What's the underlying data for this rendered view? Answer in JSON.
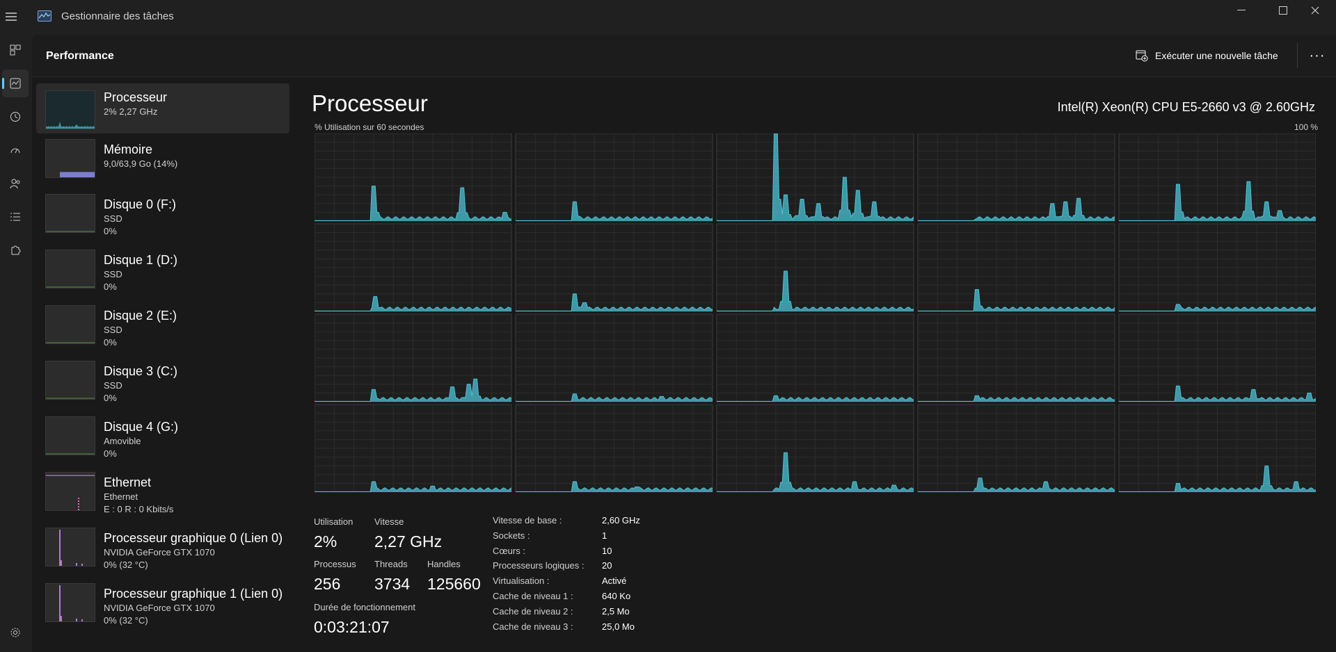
{
  "window": {
    "title": "Gestionnaire des tâches"
  },
  "header": {
    "title": "Performance",
    "run_task_label": "Exécuter une nouvelle tâche",
    "more_label": "···"
  },
  "nav": {
    "items": [
      "processes",
      "performance",
      "app-history",
      "startup",
      "users",
      "details",
      "services"
    ],
    "active": "performance",
    "settings": "settings"
  },
  "devices": [
    {
      "name": "Processeur",
      "line1": "2%  2,27 GHz",
      "line2": "",
      "kind": "cpu",
      "graph_color": "#4cc2d6"
    },
    {
      "name": "Mémoire",
      "line1": "9,0/63,9 Go (14%)",
      "line2": "",
      "kind": "mem",
      "graph_color": "#8c8cf0",
      "level": 0.14
    },
    {
      "name": "Disque 0 (F:)",
      "line1": "SSD",
      "line2": "0%",
      "kind": "disk",
      "graph_color": "#7fce5c"
    },
    {
      "name": "Disque 1 (D:)",
      "line1": "SSD",
      "line2": "0%",
      "kind": "disk",
      "graph_color": "#7fce5c"
    },
    {
      "name": "Disque 2 (E:)",
      "line1": "SSD",
      "line2": "0%",
      "kind": "disk",
      "graph_color": "#7fce5c"
    },
    {
      "name": "Disque 3 (C:)",
      "line1": "SSD",
      "line2": "0%",
      "kind": "disk",
      "graph_color": "#7fce5c"
    },
    {
      "name": "Disque 4 (G:)",
      "line1": "Amovible",
      "line2": "0%",
      "kind": "disk",
      "graph_color": "#7fce5c"
    },
    {
      "name": "Ethernet",
      "line1": "Ethernet",
      "line2": "E : 0 R : 0 Kbits/s",
      "kind": "net",
      "graph_color": "#d670b8"
    },
    {
      "name": "Processeur graphique 0 (Lien 0)",
      "line1": "NVIDIA GeForce GTX 1070",
      "line2": "0%  (32 °C)",
      "kind": "gpu",
      "graph_color": "#b07ad6"
    },
    {
      "name": "Processeur graphique 1 (Lien 0)",
      "line1": "NVIDIA GeForce GTX 1070",
      "line2": "0%  (32 °C)",
      "kind": "gpu",
      "graph_color": "#b07ad6"
    }
  ],
  "cpu": {
    "title": "Processeur",
    "model": "Intel(R) Xeon(R) CPU E5-2660 v3 @ 2.60GHz",
    "axis_label": "% Utilisation sur 60 secondes",
    "axis_max": "100 %",
    "graph_color": "#4cc2d6",
    "stats": {
      "utilisation_label": "Utilisation",
      "utilisation": "2%",
      "vitesse_label": "Vitesse",
      "vitesse": "2,27 GHz",
      "processus_label": "Processus",
      "processus": "256",
      "threads_label": "Threads",
      "threads": "3734",
      "handles_label": "Handles",
      "handles": "125660",
      "uptime_label": "Durée de fonctionnement",
      "uptime": "0:03:21:07"
    },
    "specs": [
      {
        "label": "Vitesse de base :",
        "value": "2,60 GHz"
      },
      {
        "label": "Sockets :",
        "value": "1"
      },
      {
        "label": "Cœurs :",
        "value": "10"
      },
      {
        "label": "Processeurs logiques :",
        "value": "20"
      },
      {
        "label": "Virtualisation :",
        "value": "Activé"
      },
      {
        "label": "Cache de niveau 1 :",
        "value": "640 Ko"
      },
      {
        "label": "Cache de niveau 2 :",
        "value": "2,5 Mo"
      },
      {
        "label": "Cache de niveau 3 :",
        "value": "25,0 Mo"
      }
    ],
    "logical_processor_graphs": [
      {
        "spikes": [
          [
            0.3,
            0.4
          ],
          [
            0.75,
            0.38
          ],
          [
            0.97,
            0.1
          ]
        ]
      },
      {
        "spikes": [
          [
            0.3,
            0.22
          ]
        ]
      },
      {
        "spikes": [
          [
            0.3,
            1.0
          ],
          [
            0.35,
            0.3
          ],
          [
            0.43,
            0.25
          ],
          [
            0.52,
            0.2
          ],
          [
            0.65,
            0.5
          ],
          [
            0.72,
            0.35
          ],
          [
            0.8,
            0.22
          ]
        ]
      },
      {
        "spikes": [
          [
            0.68,
            0.2
          ],
          [
            0.75,
            0.22
          ],
          [
            0.82,
            0.26
          ]
        ]
      },
      {
        "spikes": [
          [
            0.3,
            0.42
          ],
          [
            0.66,
            0.45
          ],
          [
            0.75,
            0.22
          ],
          [
            0.82,
            0.12
          ]
        ]
      },
      {
        "spikes": [
          [
            0.31,
            0.17
          ]
        ]
      },
      {
        "spikes": [
          [
            0.3,
            0.2
          ],
          [
            0.35,
            0.1
          ]
        ]
      },
      {
        "spikes": [
          [
            0.35,
            0.46
          ]
        ]
      },
      {
        "spikes": [
          [
            0.3,
            0.25
          ]
        ]
      },
      {
        "spikes": [
          [
            0.3,
            0.08
          ]
        ]
      },
      {
        "spikes": [
          [
            0.3,
            0.14
          ],
          [
            0.7,
            0.17
          ],
          [
            0.78,
            0.2
          ],
          [
            0.82,
            0.26
          ]
        ]
      },
      {
        "spikes": [
          [
            0.3,
            0.09
          ],
          [
            0.74,
            0.06
          ]
        ]
      },
      {
        "spikes": [
          [
            0.3,
            0.07
          ]
        ]
      },
      {
        "spikes": [
          [
            0.3,
            0.07
          ]
        ]
      },
      {
        "spikes": [
          [
            0.3,
            0.18
          ],
          [
            0.68,
            0.14
          ],
          [
            0.97,
            0.1
          ]
        ]
      },
      {
        "spikes": [
          [
            0.3,
            0.12
          ],
          [
            0.6,
            0.07
          ]
        ]
      },
      {
        "spikes": [
          [
            0.3,
            0.12
          ],
          [
            0.62,
            0.06
          ]
        ]
      },
      {
        "spikes": [
          [
            0.35,
            0.45
          ],
          [
            0.7,
            0.12
          ],
          [
            0.9,
            0.08
          ]
        ]
      },
      {
        "spikes": [
          [
            0.32,
            0.16
          ],
          [
            0.65,
            0.12
          ]
        ]
      },
      {
        "spikes": [
          [
            0.3,
            0.1
          ],
          [
            0.75,
            0.3
          ],
          [
            0.9,
            0.12
          ]
        ]
      }
    ]
  }
}
